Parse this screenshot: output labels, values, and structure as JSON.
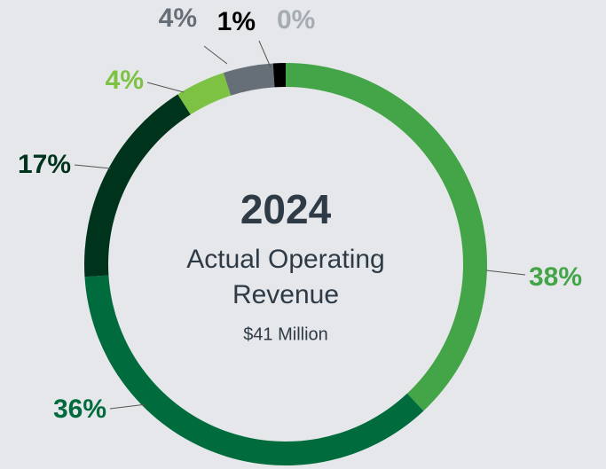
{
  "chart_data": {
    "type": "donut",
    "center_title": "2024",
    "center_lines": [
      "Actual Operating",
      "Revenue"
    ],
    "center_note": "$41 Million",
    "values": [
      38,
      36,
      17,
      4,
      4,
      1,
      0
    ],
    "value_labels": [
      "38%",
      "36%",
      "17%",
      "4%",
      "4%",
      "1%",
      "0%"
    ],
    "colors": [
      "#43a547",
      "#006b3c",
      "#00331c",
      "#7dc242",
      "#666f77",
      "#000000",
      "#a5acb2"
    ]
  }
}
